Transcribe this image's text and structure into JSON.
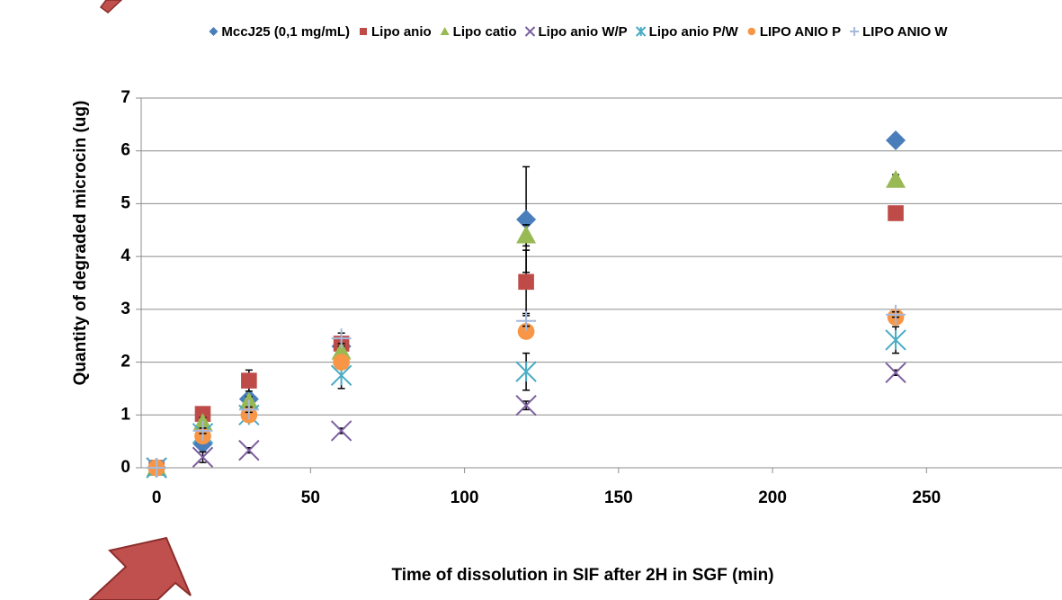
{
  "chart_data": {
    "type": "scatter",
    "x_label": "Time of dissolution in SIF after 2H in SGF (min)",
    "y_label": "Quantity of degraded microcin (ug)",
    "x": [
      0,
      15,
      30,
      60,
      120,
      240
    ],
    "xlim": [
      -5,
      294
    ],
    "xticks": [
      0,
      50,
      100,
      150,
      200,
      250
    ],
    "ylim": [
      0,
      7
    ],
    "yticks": [
      0,
      1,
      2,
      3,
      4,
      5,
      6,
      7
    ],
    "grid": true,
    "series": [
      {
        "name": "MccJ25 (0,1 mg/mL)",
        "color": "#4a7ebb",
        "marker": "diamond",
        "values": [
          0,
          0.45,
          1.3,
          2.3,
          4.7,
          6.2
        ],
        "errors": [
          0,
          0.1,
          0.1,
          0.15,
          1.0,
          0.05
        ]
      },
      {
        "name": "Lipo anio",
        "color": "#be4b48",
        "marker": "square",
        "values": [
          0,
          1.02,
          1.65,
          2.35,
          3.52,
          4.82
        ],
        "errors": [
          0,
          0.05,
          0.2,
          0.1,
          0.6,
          0.05
        ]
      },
      {
        "name": "Lipo catio",
        "color": "#98b954",
        "marker": "triangle",
        "values": [
          0,
          0.85,
          1.25,
          2.2,
          4.4,
          5.45
        ],
        "errors": [
          0,
          0.1,
          0.1,
          0.1,
          0.2,
          0.1
        ]
      },
      {
        "name": "Lipo anio W/P",
        "color": "#7d60a0",
        "marker": "x",
        "values": [
          0,
          0.2,
          0.33,
          0.7,
          1.18,
          1.8
        ],
        "errors": [
          0,
          0.1,
          0.05,
          0.05,
          0.08,
          0.05
        ]
      },
      {
        "name": "Lipo anio P/W",
        "color": "#4bacc6",
        "marker": "asterisk",
        "values": [
          0,
          0.65,
          1.0,
          1.75,
          1.82,
          2.42
        ],
        "errors": [
          0,
          0.1,
          0.1,
          0.25,
          0.35,
          0.25
        ]
      },
      {
        "name": "LIPO ANIO P",
        "color": "#f79646",
        "marker": "circle",
        "values": [
          0,
          0.6,
          1.0,
          2.0,
          2.58,
          2.85
        ],
        "errors": [
          0,
          0.05,
          0.05,
          0.1,
          0.05,
          0.05
        ]
      },
      {
        "name": "LIPO ANIO W",
        "color": "#a5b9db",
        "marker": "plus",
        "values": [
          0,
          0.7,
          1.1,
          2.45,
          2.78,
          2.9
        ],
        "errors": [
          0,
          0.05,
          0.05,
          0.1,
          0.1,
          0.05
        ]
      }
    ]
  }
}
